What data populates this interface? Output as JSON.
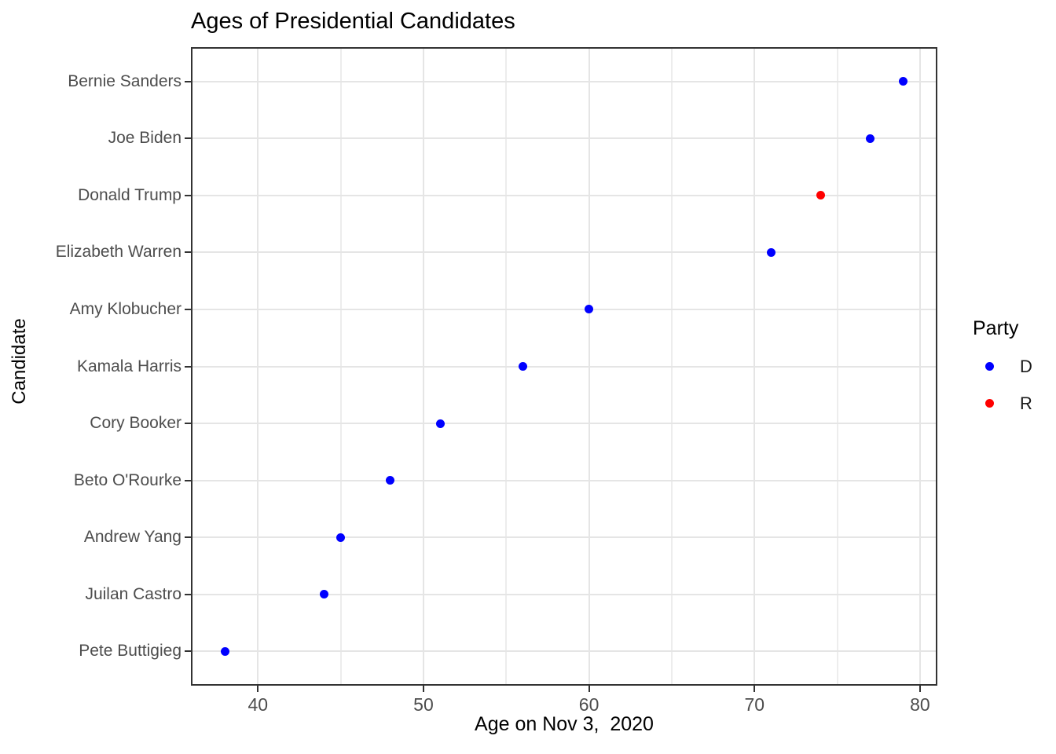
{
  "title": "Ages of Presidential Candidates",
  "x_axis": {
    "label": "Age on Nov 3,  2020",
    "ticks": [
      40,
      50,
      60,
      70,
      80
    ],
    "minor_gridlines": [
      45,
      55,
      65,
      75
    ]
  },
  "y_axis": {
    "label": "Candidate"
  },
  "legend": {
    "title": "Party",
    "items": [
      {
        "label": "D",
        "color": "#0000ff"
      },
      {
        "label": "R",
        "color": "#ff0000"
      }
    ]
  },
  "colors": {
    "D": "#0000ff",
    "R": "#ff0000",
    "grid_major": "#e5e5e5",
    "grid_minor": "#ededed",
    "panel_border": "#333333",
    "axis_text": "#4d4d4d",
    "text": "#000000",
    "background": "#ffffff"
  },
  "chart_data": {
    "type": "scatter",
    "title": "Ages of Presidential Candidates",
    "xlabel": "Age on Nov 3,  2020",
    "ylabel": "Candidate",
    "legend_title": "Party",
    "legend_position": "right",
    "grid": true,
    "xlim": [
      35.95,
      81.05
    ],
    "x_ticks": [
      40,
      50,
      60,
      70,
      80
    ],
    "x_minor_gridlines": [
      45,
      55,
      65,
      75
    ],
    "categories": [
      "Bernie Sanders",
      "Joe Biden",
      "Donald Trump",
      "Elizabeth Warren",
      "Amy Klobucher",
      "Kamala Harris",
      "Cory Booker",
      "Beto O'Rourke",
      "Andrew Yang",
      "Juilan Castro",
      "Pete Buttigieg"
    ],
    "points": [
      {
        "candidate": "Bernie Sanders",
        "age": 79,
        "party": "D"
      },
      {
        "candidate": "Joe Biden",
        "age": 77,
        "party": "D"
      },
      {
        "candidate": "Donald Trump",
        "age": 74,
        "party": "R"
      },
      {
        "candidate": "Elizabeth Warren",
        "age": 71,
        "party": "D"
      },
      {
        "candidate": "Amy Klobucher",
        "age": 60,
        "party": "D"
      },
      {
        "candidate": "Kamala Harris",
        "age": 56,
        "party": "D"
      },
      {
        "candidate": "Cory Booker",
        "age": 51,
        "party": "D"
      },
      {
        "candidate": "Beto O'Rourke",
        "age": 48,
        "party": "D"
      },
      {
        "candidate": "Andrew Yang",
        "age": 45,
        "party": "D"
      },
      {
        "candidate": "Juilan Castro",
        "age": 44,
        "party": "D"
      },
      {
        "candidate": "Pete Buttigieg",
        "age": 38,
        "party": "D"
      }
    ]
  }
}
